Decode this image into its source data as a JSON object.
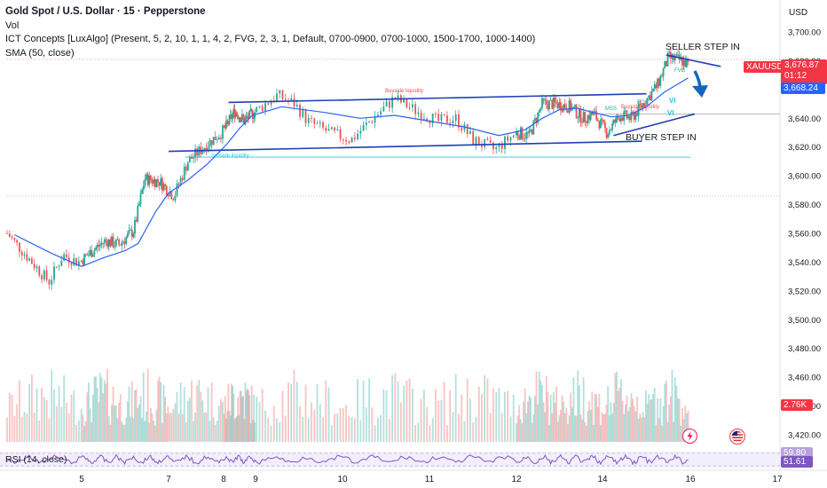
{
  "legend": {
    "title": "Gold Spot / U.S. Dollar · 15 · Pepperstone",
    "vol": "Vol",
    "ict": "ICT Concepts [LuxAlgo] (Present, 5, 2, 10, 1, 1, 4, 2, FVG, 2, 3, 1, Default, 0700-0900, 0700-1000, 1500-1700, 1000-1400)",
    "sma": "SMA (50, close)"
  },
  "currency": "USD",
  "price_badges": {
    "symbol": "XAUUSD",
    "last": "3,676.87",
    "countdown": "01:12",
    "sma": "3,668.24",
    "volume": "2.76K",
    "rsi_upper": "59.80",
    "rsi_value": "51.61"
  },
  "annotations": {
    "seller": "SELLER STEP IN",
    "buyer": "BUYER STEP IN",
    "buyside1": "Buyside liquidity",
    "buyside2": "Buyside liquidity",
    "sellside": "Sellside liquidity",
    "mss": "MSS",
    "bos": "BOS",
    "vi1": "VI",
    "vi2": "VI",
    "fvg": "FVG"
  },
  "rsi_label": "RSI (14, close)",
  "colors": {
    "up": "#26a69a",
    "down": "#ef5350",
    "sma": "#2962ff",
    "trendline": "#1e3fb5",
    "arrow": "#1565c0",
    "price_badge": "#f23645",
    "sma_badge": "#2962ff",
    "rsi": "#7e57c2"
  },
  "chart_data": {
    "type": "candlestick",
    "symbol": "XAUUSD",
    "timeframe": "15",
    "x_ticks": [
      "5",
      "7",
      "8",
      "9",
      "10",
      "11",
      "12",
      "14",
      "16",
      "17"
    ],
    "y_ticks": [
      3420,
      3440,
      3460,
      3480,
      3500,
      3520,
      3540,
      3560,
      3580,
      3600,
      3620,
      3640,
      3660,
      3680,
      3700
    ],
    "ylim": [
      3410,
      3712
    ],
    "price_path": [
      {
        "day": 4.55,
        "price": 3525
      },
      {
        "day": 4.75,
        "price": 3545
      },
      {
        "day": 4.95,
        "price": 3540
      },
      {
        "day": 5.25,
        "price": 3548
      },
      {
        "day": 5.55,
        "price": 3555
      },
      {
        "day": 5.85,
        "price": 3552
      },
      {
        "day": 6.2,
        "price": 3562
      },
      {
        "day": 6.45,
        "price": 3598
      },
      {
        "day": 6.8,
        "price": 3596
      },
      {
        "day": 7.1,
        "price": 3586
      },
      {
        "day": 7.35,
        "price": 3610
      },
      {
        "day": 7.7,
        "price": 3622
      },
      {
        "day": 8.05,
        "price": 3633
      },
      {
        "day": 8.35,
        "price": 3645
      },
      {
        "day": 8.65,
        "price": 3638
      },
      {
        "day": 9.0,
        "price": 3645
      },
      {
        "day": 9.25,
        "price": 3656
      },
      {
        "day": 9.45,
        "price": 3650
      },
      {
        "day": 9.6,
        "price": 3638
      },
      {
        "day": 9.85,
        "price": 3630
      },
      {
        "day": 10.1,
        "price": 3625
      },
      {
        "day": 10.35,
        "price": 3640
      },
      {
        "day": 10.6,
        "price": 3654
      },
      {
        "day": 10.85,
        "price": 3645
      },
      {
        "day": 11.1,
        "price": 3638
      },
      {
        "day": 11.3,
        "price": 3640
      },
      {
        "day": 11.5,
        "price": 3625
      },
      {
        "day": 11.75,
        "price": 3618
      },
      {
        "day": 12.0,
        "price": 3630
      },
      {
        "day": 12.3,
        "price": 3628
      },
      {
        "day": 12.6,
        "price": 3650
      },
      {
        "day": 12.9,
        "price": 3650
      },
      {
        "day": 13.25,
        "price": 3648
      },
      {
        "day": 13.55,
        "price": 3640
      },
      {
        "day": 13.8,
        "price": 3643
      },
      {
        "day": 14.1,
        "price": 3630
      },
      {
        "day": 14.4,
        "price": 3642
      },
      {
        "day": 14.65,
        "price": 3640
      },
      {
        "day": 14.85,
        "price": 3647
      },
      {
        "day": 15.05,
        "price": 3655
      },
      {
        "day": 15.25,
        "price": 3663
      },
      {
        "day": 15.5,
        "price": 3682
      },
      {
        "day": 15.8,
        "price": 3680
      },
      {
        "day": 15.95,
        "price": 3677
      }
    ],
    "sma_path": [
      {
        "day": 4.1,
        "price": 3559
      },
      {
        "day": 4.6,
        "price": 3546
      },
      {
        "day": 5.0,
        "price": 3537
      },
      {
        "day": 5.5,
        "price": 3543
      },
      {
        "day": 6.0,
        "price": 3548
      },
      {
        "day": 6.3,
        "price": 3553
      },
      {
        "day": 6.7,
        "price": 3575
      },
      {
        "day": 7.0,
        "price": 3588
      },
      {
        "day": 7.35,
        "price": 3597
      },
      {
        "day": 7.7,
        "price": 3608
      },
      {
        "day": 8.1,
        "price": 3622
      },
      {
        "day": 8.5,
        "price": 3633
      },
      {
        "day": 8.9,
        "price": 3642
      },
      {
        "day": 9.3,
        "price": 3648
      },
      {
        "day": 9.8,
        "price": 3644
      },
      {
        "day": 10.2,
        "price": 3640
      },
      {
        "day": 10.6,
        "price": 3642
      },
      {
        "day": 11.0,
        "price": 3638
      },
      {
        "day": 11.4,
        "price": 3634
      },
      {
        "day": 11.8,
        "price": 3628
      },
      {
        "day": 12.2,
        "price": 3632
      },
      {
        "day": 12.6,
        "price": 3640
      },
      {
        "day": 13.0,
        "price": 3646
      },
      {
        "day": 13.4,
        "price": 3647
      },
      {
        "day": 13.8,
        "price": 3644
      },
      {
        "day": 14.2,
        "price": 3641
      },
      {
        "day": 14.6,
        "price": 3642
      },
      {
        "day": 15.0,
        "price": 3648
      },
      {
        "day": 15.4,
        "price": 3658
      },
      {
        "day": 15.95,
        "price": 3668
      }
    ],
    "trendlines": [
      {
        "name": "upper-channel",
        "start": {
          "day": 8.15,
          "price": 3651
        },
        "end": {
          "day": 15.0,
          "price": 3657
        }
      },
      {
        "name": "lower-channel",
        "start": {
          "day": 7.0,
          "price": 3617
        },
        "end": {
          "day": 14.9,
          "price": 3624
        }
      },
      {
        "name": "rising-support",
        "start": {
          "day": 14.25,
          "price": 3628
        },
        "end": {
          "day": 16.05,
          "price": 3643
        }
      },
      {
        "name": "seller-line",
        "start": {
          "day": 15.45,
          "price": 3684
        },
        "end": {
          "day": 16.35,
          "price": 3676
        }
      }
    ],
    "levels": [
      {
        "name": "sellside-liquidity",
        "price": 3613,
        "from_day": 7.3,
        "to_day": 16.0
      },
      {
        "name": "high-reference",
        "price": 3681,
        "from_day": 4.0,
        "to_day": 17.3
      },
      {
        "name": "mid-reference",
        "price": 3643,
        "from_day": 13.8,
        "to_day": 17.3
      },
      {
        "name": "low-reference",
        "price": 3586,
        "from_day": 4.0,
        "to_day": 17.3
      }
    ],
    "last_price": 3676.87,
    "sma_last": 3668.24,
    "volume_last": "2.76K",
    "rsi": {
      "period": 14,
      "value": 51.61,
      "upper": 59.8
    }
  }
}
